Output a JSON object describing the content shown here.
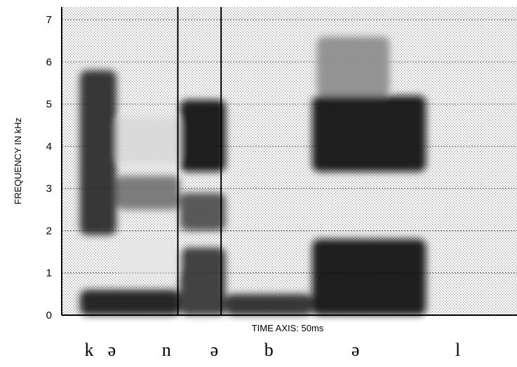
{
  "chart_data": {
    "type": "heatmap",
    "title": "",
    "xlabel": "TIME AXIS: 50ms",
    "ylabel": "FREQUENCY IN kHz",
    "ylim": [
      0,
      7.3
    ],
    "y_ticks": [
      "0",
      "1",
      "2",
      "3",
      "4",
      "5",
      "6",
      "7"
    ],
    "segment_boundaries_x": [
      0.255,
      0.35
    ],
    "phonetic_labels": [
      {
        "symbol": "k",
        "x": 0.06
      },
      {
        "symbol": "ə",
        "x": 0.11
      },
      {
        "symbol": "n",
        "x": 0.23
      },
      {
        "symbol": "ə",
        "x": 0.335
      },
      {
        "symbol": "b",
        "x": 0.455
      },
      {
        "symbol": "ə",
        "x": 0.645
      },
      {
        "symbol": "l",
        "x": 0.87
      }
    ],
    "energy_regions": [
      {
        "t0": 0.04,
        "t1": 0.12,
        "f0": 1.9,
        "f1": 5.8,
        "intensity": 0.85
      },
      {
        "t0": 0.04,
        "t1": 0.26,
        "f0": 0.0,
        "f1": 0.6,
        "intensity": 0.9
      },
      {
        "t0": 0.12,
        "t1": 0.26,
        "f0": 2.5,
        "f1": 3.3,
        "intensity": 0.55
      },
      {
        "t0": 0.12,
        "t1": 0.26,
        "f0": 1.0,
        "f1": 1.7,
        "intensity": 0.1
      },
      {
        "t0": 0.12,
        "t1": 0.26,
        "f0": 3.6,
        "f1": 4.7,
        "intensity": 0.15
      },
      {
        "t0": 0.26,
        "t1": 0.36,
        "f0": 3.4,
        "f1": 5.1,
        "intensity": 0.95
      },
      {
        "t0": 0.26,
        "t1": 0.36,
        "f0": 0.0,
        "f1": 1.6,
        "intensity": 0.8
      },
      {
        "t0": 0.26,
        "t1": 0.36,
        "f0": 2.0,
        "f1": 2.9,
        "intensity": 0.7
      },
      {
        "t0": 0.36,
        "t1": 0.55,
        "f0": 0.0,
        "f1": 0.5,
        "intensity": 0.85
      },
      {
        "t0": 0.55,
        "t1": 0.8,
        "f0": 3.4,
        "f1": 5.2,
        "intensity": 0.95
      },
      {
        "t0": 0.55,
        "t1": 0.8,
        "f0": 0.0,
        "f1": 1.8,
        "intensity": 0.95
      },
      {
        "t0": 0.56,
        "t1": 0.72,
        "f0": 5.2,
        "f1": 6.6,
        "intensity": 0.45
      }
    ],
    "grid": true,
    "colors": {
      "background": "#ffffff",
      "ink": "#000000",
      "mid": "#b8b8b8",
      "light": "#e2e2e2"
    }
  }
}
